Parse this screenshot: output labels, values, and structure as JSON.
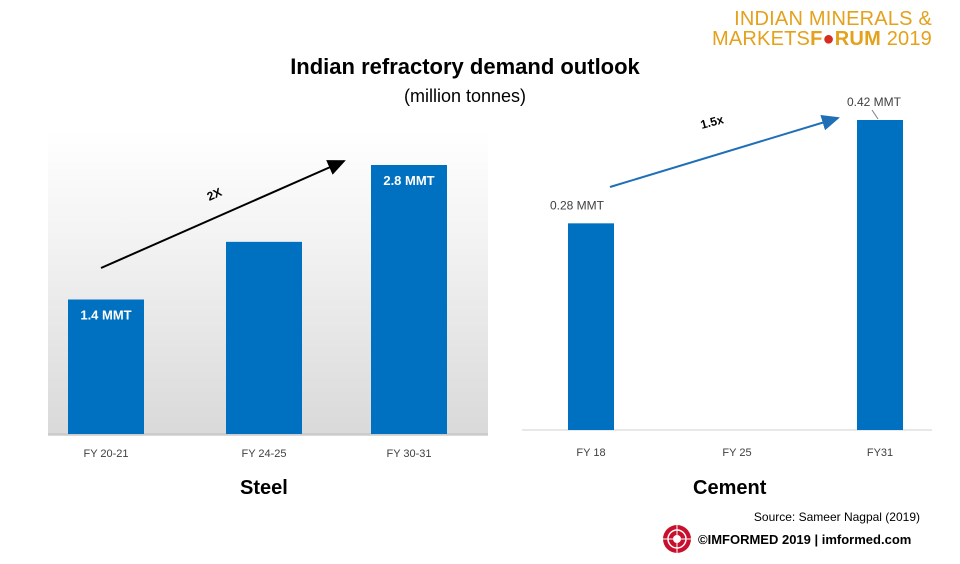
{
  "page": {
    "title": "Indian refractory  demand outlook",
    "subtitle": "(million  tonnes)",
    "brand_line1": "INDIAN MINERALS &",
    "brand_line2_a": "MARKETS",
    "brand_line2_b": "F",
    "brand_line2_c": "RUM",
    "brand_line2_d": " 2019",
    "steel_label": "Steel",
    "cement_label": "Cement",
    "source": "Source: Sameer Nagpal (2019)",
    "footer": "©IMFORMED 2019  | imformed.com",
    "colors": {
      "bar": "#0070c0",
      "arrow_steel": "#000000",
      "arrow_cement": "#1f6fb6",
      "brand": "#e4a11b",
      "brand_accent": "#d62d20"
    }
  },
  "chart_data": [
    {
      "type": "bar",
      "title": "Steel",
      "categories": [
        "FY 20-21",
        "FY 24-25",
        "FY 30-31"
      ],
      "values": [
        1.4,
        2.0,
        2.8
      ],
      "data_labels": [
        "1.4 MMT",
        "",
        "2.8 MMT"
      ],
      "annotation": "2X",
      "ylim": [
        0,
        2.8
      ],
      "grid": false
    },
    {
      "type": "bar",
      "title": "Cement",
      "categories": [
        "FY 18",
        "FY 25",
        "FY31"
      ],
      "values": [
        0.28,
        null,
        0.42
      ],
      "data_labels": [
        "0.28 MMT",
        "",
        "0.42 MMT"
      ],
      "annotation": "1.5x",
      "ylim": [
        0,
        0.42
      ],
      "grid": false
    }
  ]
}
